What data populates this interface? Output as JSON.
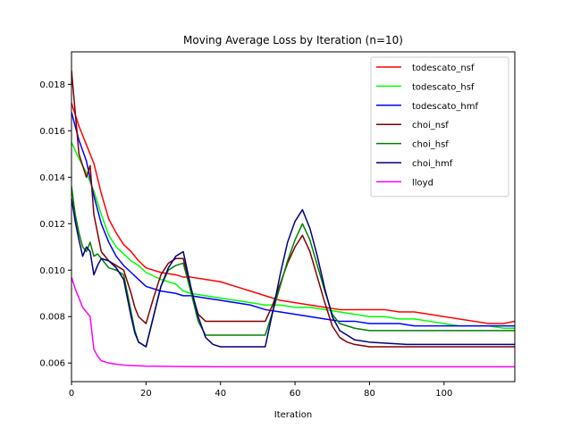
{
  "chart_data": {
    "type": "line",
    "title": "Moving Average Loss by Iteration (n=10)",
    "xlabel": "Iteration",
    "ylabel": "",
    "xlim": [
      0,
      119
    ],
    "ylim": [
      0.0052,
      0.0194
    ],
    "xticks": [
      0,
      20,
      40,
      60,
      80,
      100
    ],
    "yticks": [
      0.006,
      0.008,
      0.01,
      0.012,
      0.014,
      0.016,
      0.018
    ],
    "ytick_labels": [
      "0.006",
      "0.008",
      "0.010",
      "0.012",
      "0.014",
      "0.016",
      "0.018"
    ],
    "grid": false,
    "legend_position": "top-right",
    "series": [
      {
        "name": "todescato_nsf",
        "color": "#ff0000",
        "x": [
          0,
          2,
          4,
          6,
          8,
          10,
          12,
          14,
          16,
          18,
          20,
          24,
          28,
          30,
          32,
          36,
          40,
          44,
          48,
          52,
          56,
          60,
          64,
          68,
          72,
          76,
          80,
          84,
          88,
          92,
          96,
          100,
          104,
          108,
          112,
          116,
          119
        ],
        "y": [
          0.0172,
          0.0162,
          0.0154,
          0.0146,
          0.0133,
          0.0122,
          0.0116,
          0.0111,
          0.0108,
          0.0104,
          0.0101,
          0.0099,
          0.0098,
          0.0097,
          0.0097,
          0.0096,
          0.0095,
          0.0093,
          0.0091,
          0.0089,
          0.0087,
          0.0086,
          0.0085,
          0.0084,
          0.0083,
          0.0083,
          0.0083,
          0.0083,
          0.0082,
          0.0082,
          0.0081,
          0.008,
          0.0079,
          0.0078,
          0.0077,
          0.0077,
          0.0078
        ]
      },
      {
        "name": "todescato_hsf",
        "color": "#00ff00",
        "x": [
          0,
          2,
          4,
          6,
          8,
          10,
          12,
          14,
          16,
          18,
          20,
          24,
          28,
          30,
          32,
          36,
          40,
          44,
          48,
          52,
          56,
          60,
          64,
          68,
          72,
          76,
          80,
          84,
          88,
          92,
          96,
          100,
          104,
          108,
          112,
          116,
          119
        ],
        "y": [
          0.0155,
          0.0148,
          0.0142,
          0.0134,
          0.0124,
          0.0115,
          0.011,
          0.0107,
          0.0104,
          0.0102,
          0.0099,
          0.0096,
          0.0094,
          0.0091,
          0.009,
          0.0089,
          0.0088,
          0.0087,
          0.0086,
          0.0085,
          0.0085,
          0.0084,
          0.0084,
          0.0083,
          0.0082,
          0.0081,
          0.008,
          0.008,
          0.0079,
          0.0079,
          0.0078,
          0.0077,
          0.0076,
          0.0076,
          0.0076,
          0.0075,
          0.0075
        ]
      },
      {
        "name": "todescato_hmf",
        "color": "#0000ff",
        "x": [
          0,
          2,
          4,
          6,
          8,
          10,
          12,
          14,
          16,
          18,
          20,
          24,
          28,
          30,
          32,
          36,
          40,
          44,
          48,
          52,
          56,
          60,
          64,
          68,
          72,
          76,
          80,
          84,
          88,
          92,
          96,
          100,
          104,
          108,
          112,
          116,
          119
        ],
        "y": [
          0.0168,
          0.0156,
          0.0147,
          0.0132,
          0.012,
          0.0112,
          0.0106,
          0.0102,
          0.0099,
          0.0096,
          0.0093,
          0.0091,
          0.009,
          0.0089,
          0.0089,
          0.0088,
          0.0087,
          0.0086,
          0.0085,
          0.0083,
          0.0082,
          0.0081,
          0.008,
          0.0079,
          0.0078,
          0.0078,
          0.0077,
          0.0077,
          0.0077,
          0.0076,
          0.0076,
          0.0076,
          0.0076,
          0.0076,
          0.0076,
          0.0076,
          0.0076
        ]
      },
      {
        "name": "choi_nsf",
        "color": "#800000",
        "x": [
          0,
          2,
          4,
          5,
          6,
          8,
          10,
          12,
          14,
          16,
          17,
          18,
          20,
          22,
          24,
          26,
          28,
          30,
          32,
          34,
          36,
          40,
          44,
          48,
          52,
          54,
          56,
          58,
          60,
          62,
          64,
          66,
          68,
          70,
          72,
          74,
          76,
          80,
          84,
          90,
          100,
          110,
          119
        ],
        "y": [
          0.0186,
          0.015,
          0.014,
          0.0145,
          0.0124,
          0.0108,
          0.0104,
          0.0102,
          0.01,
          0.009,
          0.0084,
          0.008,
          0.0077,
          0.0088,
          0.0098,
          0.0103,
          0.0105,
          0.0105,
          0.0092,
          0.0081,
          0.0078,
          0.0078,
          0.0078,
          0.0078,
          0.0078,
          0.0085,
          0.0094,
          0.0103,
          0.011,
          0.0115,
          0.0108,
          0.0097,
          0.0086,
          0.0076,
          0.0071,
          0.0069,
          0.0068,
          0.0067,
          0.0067,
          0.0067,
          0.0067,
          0.0067,
          0.0067
        ]
      },
      {
        "name": "choi_hsf",
        "color": "#008000",
        "x": [
          0,
          1,
          2,
          3,
          4,
          5,
          6,
          7,
          8,
          10,
          12,
          14,
          15,
          16,
          17,
          18,
          19,
          20,
          22,
          24,
          26,
          28,
          30,
          32,
          34,
          36,
          40,
          44,
          48,
          52,
          54,
          56,
          58,
          60,
          62,
          64,
          66,
          68,
          70,
          72,
          76,
          80,
          90,
          100,
          110,
          119
        ],
        "y": [
          0.0136,
          0.0124,
          0.0116,
          0.011,
          0.0108,
          0.0112,
          0.0106,
          0.0107,
          0.0105,
          0.0101,
          0.01,
          0.0098,
          0.009,
          0.0082,
          0.0074,
          0.0069,
          0.0068,
          0.0067,
          0.008,
          0.0093,
          0.01,
          0.0102,
          0.0103,
          0.0091,
          0.0078,
          0.0072,
          0.0072,
          0.0072,
          0.0072,
          0.0072,
          0.0082,
          0.0093,
          0.0104,
          0.0113,
          0.012,
          0.0113,
          0.0102,
          0.0091,
          0.0081,
          0.0077,
          0.0075,
          0.0074,
          0.0074,
          0.0074,
          0.0074,
          0.0074
        ]
      },
      {
        "name": "choi_hmf",
        "color": "#00007f",
        "x": [
          0,
          1,
          2,
          3,
          4,
          5,
          6,
          7,
          8,
          10,
          12,
          14,
          15,
          16,
          17,
          18,
          19,
          20,
          22,
          24,
          26,
          28,
          30,
          32,
          34,
          36,
          38,
          40,
          44,
          48,
          52,
          54,
          56,
          58,
          60,
          62,
          64,
          66,
          68,
          70,
          72,
          76,
          80,
          90,
          100,
          110,
          119
        ],
        "y": [
          0.0131,
          0.0121,
          0.0113,
          0.0106,
          0.011,
          0.0108,
          0.0098,
          0.0102,
          0.0105,
          0.0104,
          0.0101,
          0.0096,
          0.0088,
          0.008,
          0.0073,
          0.0069,
          0.0068,
          0.0067,
          0.008,
          0.0093,
          0.0101,
          0.0106,
          0.0108,
          0.0093,
          0.008,
          0.0071,
          0.0068,
          0.0067,
          0.0067,
          0.0067,
          0.0067,
          0.0082,
          0.0098,
          0.0112,
          0.0121,
          0.0126,
          0.0118,
          0.0106,
          0.0092,
          0.008,
          0.0074,
          0.007,
          0.0069,
          0.0068,
          0.0068,
          0.0068,
          0.0068
        ]
      },
      {
        "name": "lloyd",
        "color": "#ff00ff",
        "x": [
          0,
          1,
          2,
          3,
          4,
          5,
          6,
          7,
          8,
          10,
          12,
          15,
          20,
          30,
          40,
          60,
          80,
          100,
          119
        ],
        "y": [
          0.0097,
          0.0092,
          0.0088,
          0.0084,
          0.0082,
          0.008,
          0.0066,
          0.0063,
          0.0061,
          0.006,
          0.00595,
          0.0059,
          0.00587,
          0.00585,
          0.00584,
          0.00584,
          0.00584,
          0.00584,
          0.00584
        ]
      }
    ]
  }
}
